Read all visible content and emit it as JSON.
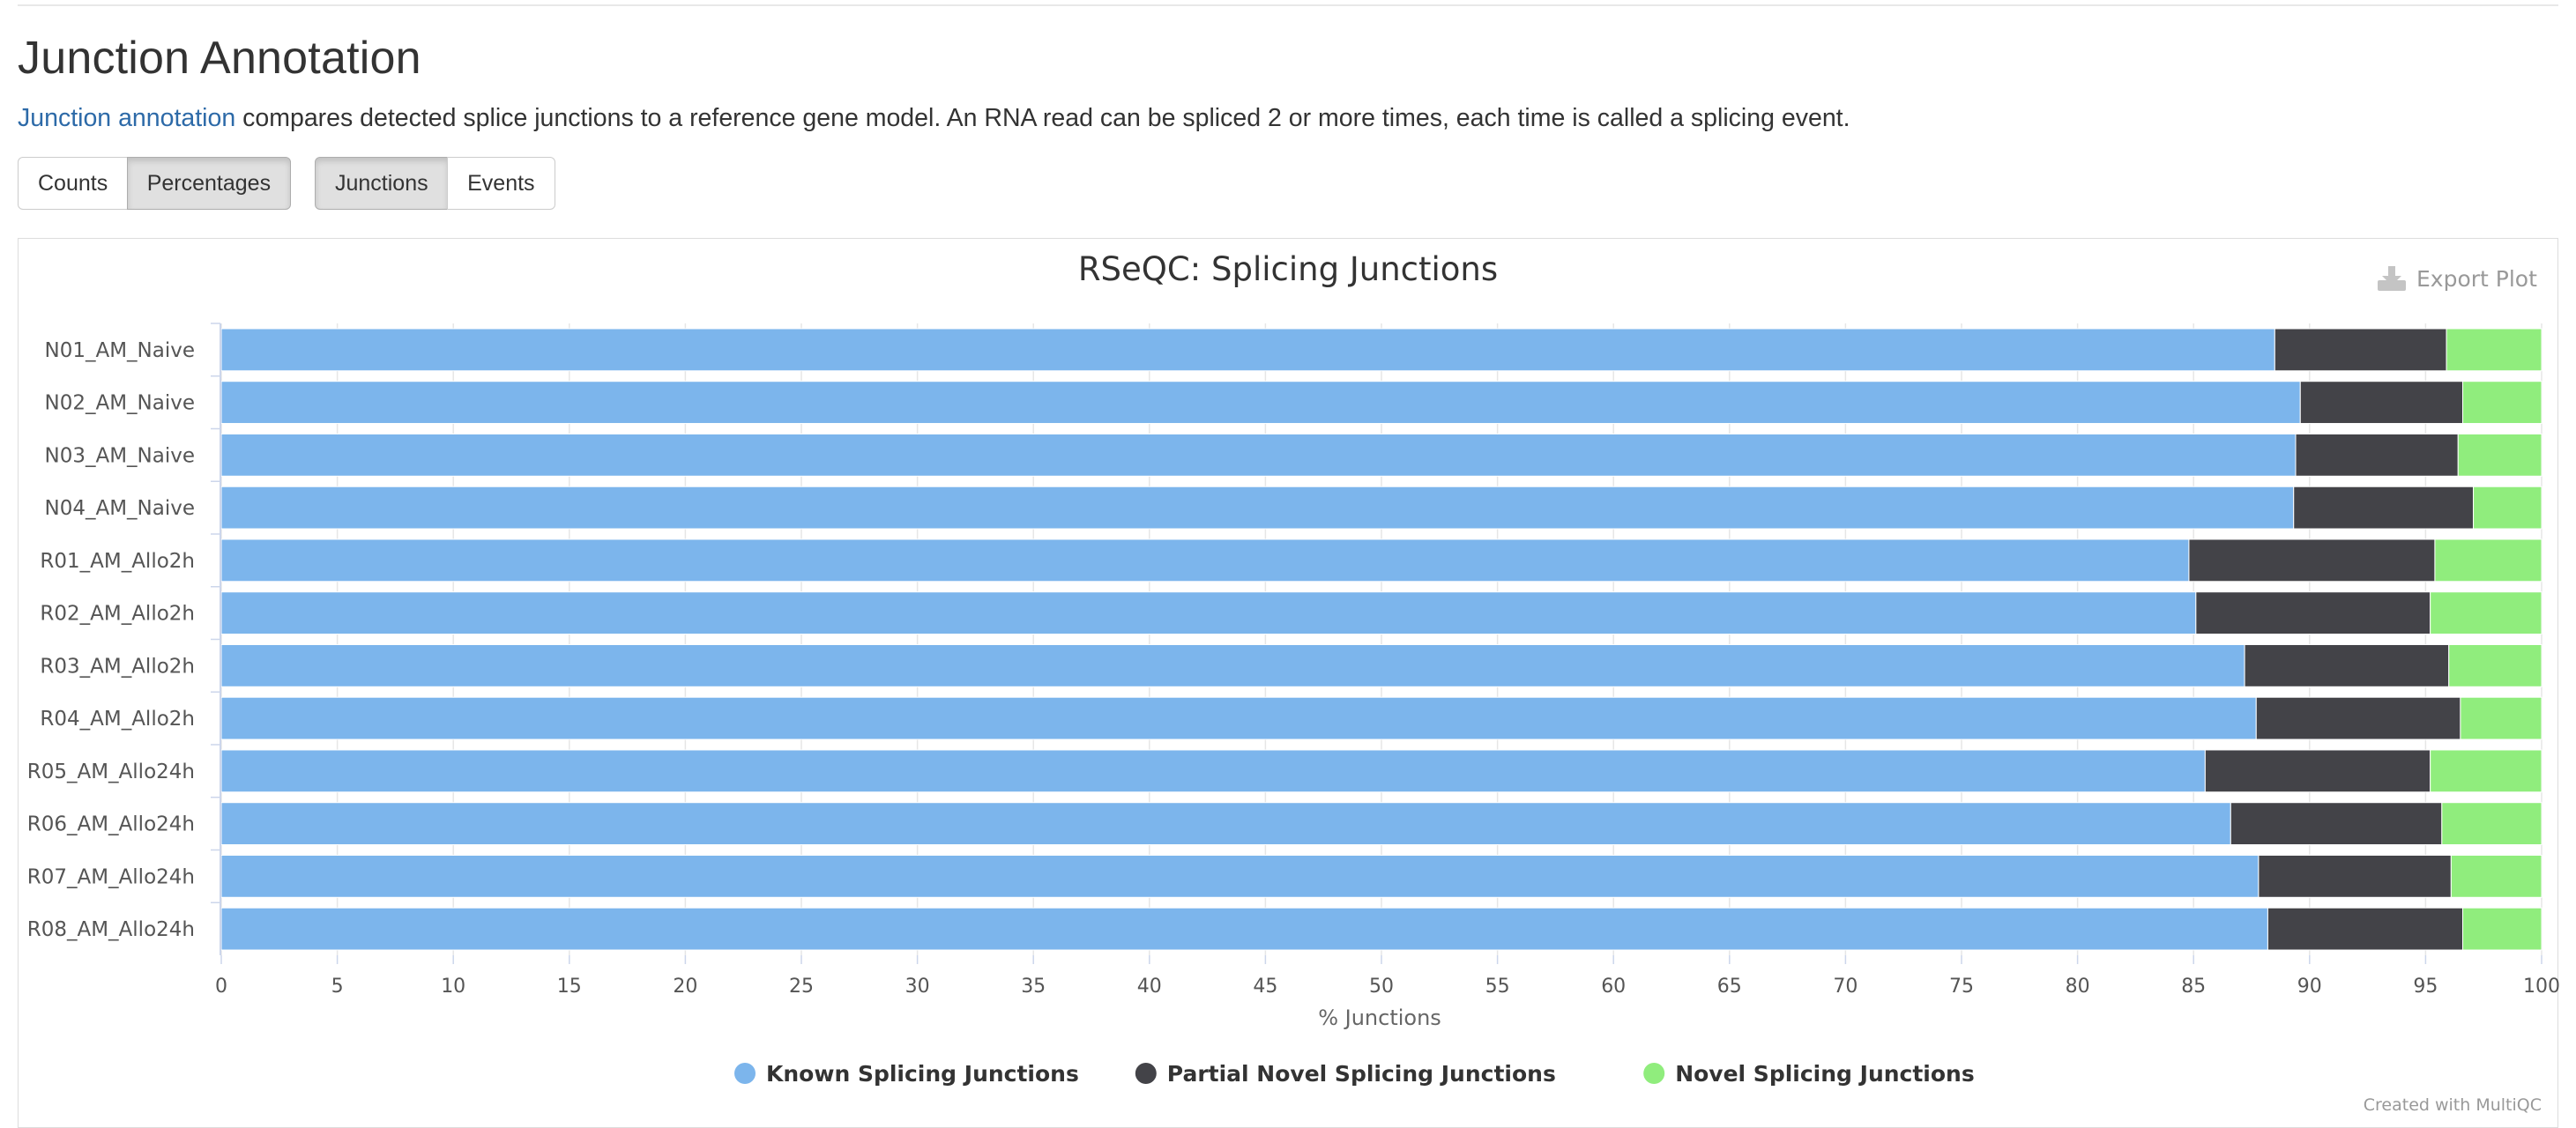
{
  "section": {
    "title": "Junction Annotation",
    "description_link": "Junction annotation",
    "description_rest": " compares detected splice junctions to a reference gene model. An RNA read can be spliced 2 or more times, each time is called a splicing event."
  },
  "toggles": {
    "counts": "Counts",
    "percentages": "Percentages",
    "junctions": "Junctions",
    "events": "Events"
  },
  "export_label": "Export Plot",
  "credit": "Created with MultiQC",
  "chart_data": {
    "type": "bar",
    "orientation": "horizontal",
    "stacking": "percent",
    "title": "RSeQC: Splicing Junctions",
    "xlabel": "% Junctions",
    "ylabel": "",
    "xlim": [
      0,
      100
    ],
    "xticks": [
      0,
      5,
      10,
      15,
      20,
      25,
      30,
      35,
      40,
      45,
      50,
      55,
      60,
      65,
      70,
      75,
      80,
      85,
      90,
      95,
      100
    ],
    "grid": true,
    "legend_position": "bottom-center",
    "categories": [
      "N01_AM_Naive",
      "N02_AM_Naive",
      "N03_AM_Naive",
      "N04_AM_Naive",
      "R01_AM_Allo2h",
      "R02_AM_Allo2h",
      "R03_AM_Allo2h",
      "R04_AM_Allo2h",
      "R05_AM_Allo24h",
      "R06_AM_Allo24h",
      "R07_AM_Allo24h",
      "R08_AM_Allo24h"
    ],
    "series": [
      {
        "name": "Known Splicing Junctions",
        "color": "#7cb5ec",
        "values": [
          88.5,
          89.6,
          89.4,
          91.1,
          84.8,
          85.1,
          87.2,
          87.7,
          85.5,
          86.6,
          87.8,
          88.2
        ]
      },
      {
        "name": "Partial Novel Splicing Junctions",
        "color": "#434348",
        "values": [
          7.4,
          7.0,
          7.0,
          7.9,
          10.6,
          10.1,
          8.8,
          8.8,
          9.7,
          9.1,
          8.3,
          8.4
        ]
      },
      {
        "name": "Novel Splicing Junctions",
        "color": "#90ed7d",
        "values": [
          4.1,
          3.4,
          3.6,
          3.0,
          4.6,
          4.8,
          4.0,
          3.5,
          4.8,
          4.3,
          3.9,
          3.4
        ]
      }
    ]
  }
}
